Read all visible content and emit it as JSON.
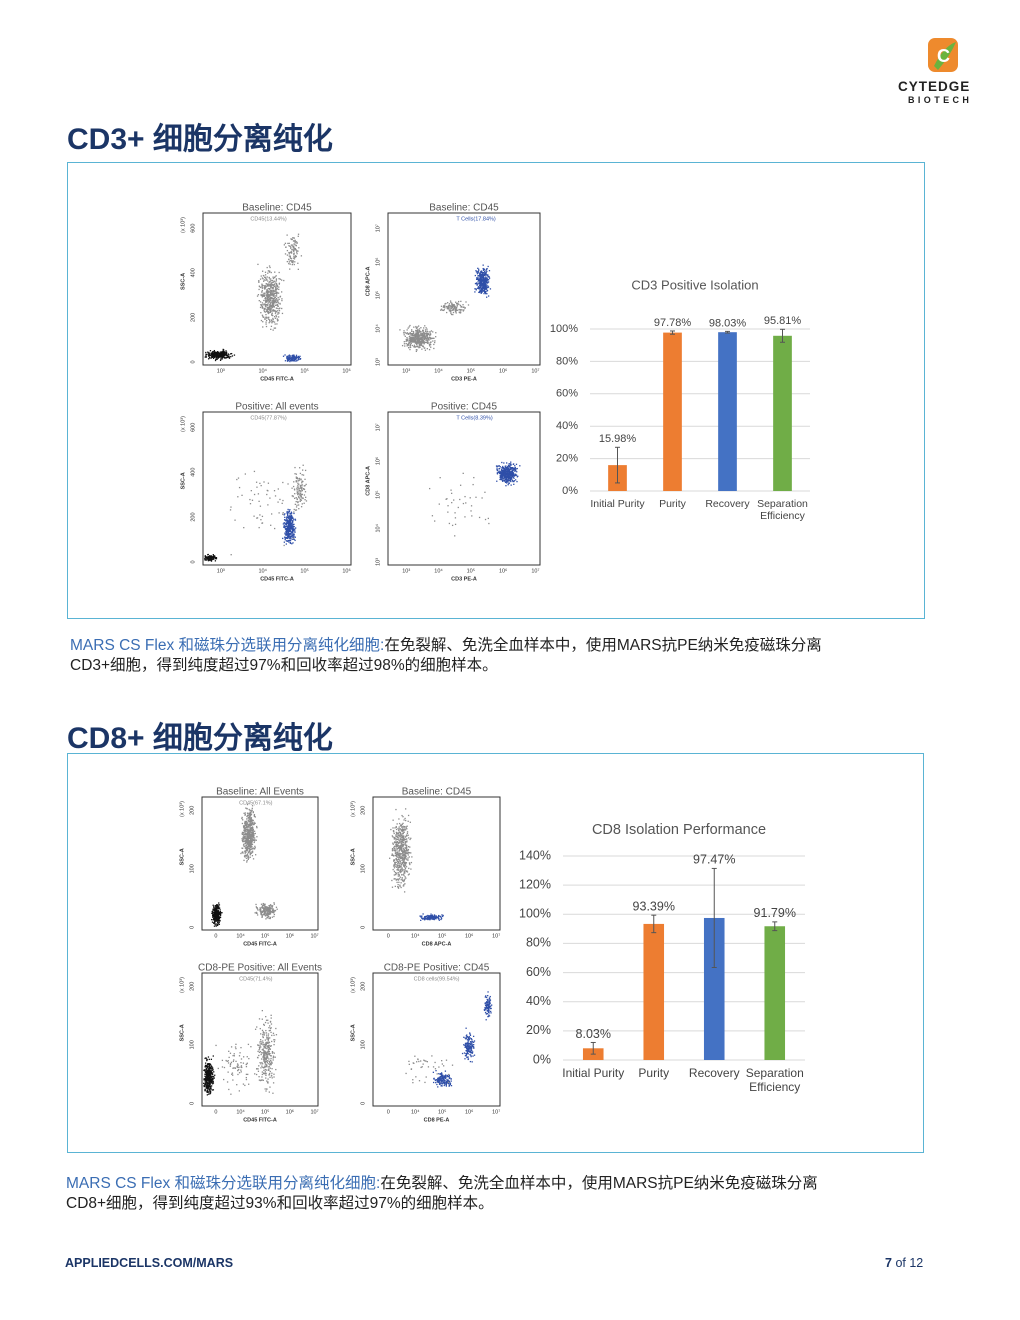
{
  "logo": {
    "name": "CYTEDGE",
    "sub": "BIOTECH"
  },
  "sections": [
    {
      "title": "CD3+ 细胞分离纯化",
      "plots": [
        {
          "title": "Baseline: CD45",
          "gate": "CD45(13.44%)",
          "xlabel": "CD45 FITC-A",
          "ylabel": "SSC-A",
          "yunit": "(x 10³)",
          "xticks": [
            "10³",
            "10⁴",
            "10⁵",
            "10⁶"
          ],
          "yticks": [
            "0",
            "200",
            "400",
            "600"
          ]
        },
        {
          "title": "Baseline: CD45",
          "gate": "T Cells(17.84%)",
          "xlabel": "CD3 PE-A",
          "ylabel": "CD8 APC-A",
          "xticks": [
            "10³",
            "10⁴",
            "10⁵",
            "10⁶",
            "10⁷"
          ],
          "yticks": [
            "10³",
            "10⁴",
            "10⁵",
            "10⁶",
            "10⁷"
          ]
        },
        {
          "title": "Positive: All events",
          "gate": "CD45(77.87%)",
          "xlabel": "CD45 FITC-A",
          "ylabel": "SSC-A",
          "yunit": "(x 10³)",
          "xticks": [
            "10³",
            "10⁴",
            "10⁵",
            "10⁶"
          ],
          "yticks": [
            "0",
            "200",
            "400",
            "600"
          ]
        },
        {
          "title": "Positive: CD45",
          "gate": "T Cells(8.39%)",
          "xlabel": "CD3 PE-A",
          "ylabel": "CD8 APC-A",
          "xticks": [
            "10³",
            "10⁴",
            "10⁵",
            "10⁶",
            "10⁷"
          ],
          "yticks": [
            "10³",
            "10⁴",
            "10⁵",
            "10⁶",
            "10⁷"
          ]
        }
      ],
      "chart": {
        "type": "bar",
        "title": "CD3 Positive Isolation",
        "categories": [
          "Initial Purity",
          "Purity",
          "Recovery",
          "Separation Efficiency"
        ],
        "values": [
          15.98,
          97.78,
          98.03,
          95.81
        ],
        "value_labels": [
          "15.98%",
          "97.78%",
          "98.03%",
          "95.81%"
        ],
        "errors": [
          11,
          1,
          0.5,
          4
        ],
        "colors": [
          "#ed7d31",
          "#ed7d31",
          "#4472c4",
          "#70ad47"
        ],
        "ylim": [
          0,
          100
        ],
        "yticks": [
          {
            "value": 0,
            "label": "0%"
          },
          {
            "value": 20,
            "label": "20%"
          },
          {
            "value": 40,
            "label": "40%"
          },
          {
            "value": 60,
            "label": "60%"
          },
          {
            "value": 80,
            "label": "80%"
          },
          {
            "value": 100,
            "label": "100%"
          }
        ]
      },
      "caption": {
        "lead": "MARS CS Flex 和磁珠分选联用分离纯化细胞:",
        "lines": [
          "在免裂解、免洗全血样本中，使用MARS抗PE纳米免疫磁珠分离",
          "CD3+细胞，得到纯度超过97%和回收率超过98%的细胞样本。"
        ]
      }
    },
    {
      "title": "CD8+ 细胞分离纯化",
      "plots": [
        {
          "title": "Baseline: All Events",
          "gate": "CD45(67.1%)",
          "xlabel": "CD45 FITC-A",
          "ylabel": "SSC-A",
          "yunit": "(x 10³)",
          "xticks": [
            "0",
            "10⁴",
            "10⁵",
            "10⁶",
            "10⁷"
          ],
          "yticks": [
            "0",
            "100",
            "200"
          ]
        },
        {
          "title": "Baseline: CD45",
          "gate": "",
          "xlabel": "CD8 APC-A",
          "ylabel": "SSC-A",
          "yunit": "(x 10³)",
          "xticks": [
            "0",
            "10⁴",
            "10⁵",
            "10⁶",
            "10⁷"
          ],
          "yticks": [
            "0",
            "100",
            "200"
          ]
        },
        {
          "title": "CD8-PE Positive: All Events",
          "gate": "CD45(71.4%)",
          "xlabel": "CD45 FITC-A",
          "ylabel": "SSC-A",
          "yunit": "(x 10³)",
          "xticks": [
            "0",
            "10⁴",
            "10⁵",
            "10⁶",
            "10⁷"
          ],
          "yticks": [
            "0",
            "100",
            "200"
          ]
        },
        {
          "title": "CD8-PE Positive: CD45",
          "gate": "CD8 cells(99.54%)",
          "xlabel": "CD8 PE-A",
          "ylabel": "SSC-A",
          "yunit": "(x 10³)",
          "xticks": [
            "0",
            "10⁴",
            "10⁵",
            "10⁶",
            "10⁷"
          ],
          "yticks": [
            "0",
            "100",
            "200"
          ]
        }
      ],
      "chart": {
        "type": "bar",
        "title": "CD8 Isolation Performance",
        "categories": [
          "Initial Purity",
          "Purity",
          "Recovery",
          "Separation Efficiency"
        ],
        "values": [
          8.03,
          93.39,
          97.47,
          91.79
        ],
        "value_labels": [
          "8.03%",
          "93.39%",
          "97.47%",
          "91.79%"
        ],
        "errors": [
          4,
          6,
          34,
          3
        ],
        "colors": [
          "#ed7d31",
          "#ed7d31",
          "#4472c4",
          "#70ad47"
        ],
        "ylim": [
          0,
          140
        ],
        "yticks": [
          {
            "value": 0,
            "label": "0%"
          },
          {
            "value": 20,
            "label": "20%"
          },
          {
            "value": 40,
            "label": "40%"
          },
          {
            "value": 60,
            "label": "60%"
          },
          {
            "value": 80,
            "label": "80%"
          },
          {
            "value": 100,
            "label": "100%"
          },
          {
            "value": 120,
            "label": "120%"
          },
          {
            "value": 140,
            "label": "140%"
          }
        ]
      },
      "caption": {
        "lead": "MARS CS Flex 和磁珠分选联用分离纯化细胞:",
        "lines": [
          "在免裂解、免洗全血样本中，使用MARS抗PE纳米免疫磁珠分离",
          "CD8+细胞，得到纯度超过93%和回收率超过97%的细胞样本。"
        ]
      }
    }
  ],
  "footer": {
    "url": "APPLIEDCELLS.COM/MARS",
    "page": "7",
    "of": "of 12"
  }
}
